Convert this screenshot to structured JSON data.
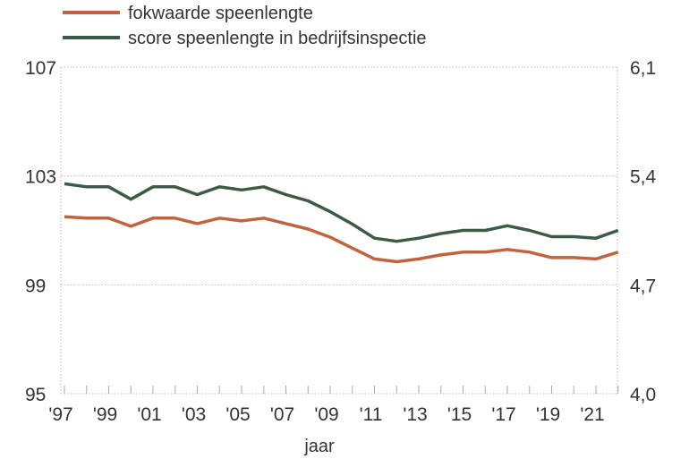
{
  "chart_data": {
    "type": "line",
    "title": "",
    "xlabel": "jaar",
    "ylabel_left": "",
    "ylabel_right": "",
    "x": [
      1997,
      1998,
      1999,
      2000,
      2001,
      2002,
      2003,
      2004,
      2005,
      2006,
      2007,
      2008,
      2009,
      2010,
      2011,
      2012,
      2013,
      2014,
      2015,
      2016,
      2017,
      2018,
      2019,
      2020,
      2021,
      2022
    ],
    "x_tick_labels": [
      "'97",
      "'99",
      "'01",
      "'03",
      "'05",
      "'07",
      "'09",
      "'11",
      "'13",
      "'15",
      "'17",
      "'19",
      "'21"
    ],
    "x_tick_years": [
      1997,
      1999,
      2001,
      2003,
      2005,
      2007,
      2009,
      2011,
      2013,
      2015,
      2017,
      2019,
      2021
    ],
    "ylim_left": [
      95,
      107
    ],
    "y_ticks_left": [
      "107",
      "103",
      "99",
      "95"
    ],
    "y_tick_values_left": [
      107,
      103,
      99,
      95
    ],
    "ylim_right": [
      4.0,
      6.1
    ],
    "y_ticks_right": [
      "6,1",
      "5,4",
      "4,7",
      "4,0"
    ],
    "y_tick_values_right": [
      6.1,
      5.4,
      4.7,
      4.0
    ],
    "grid": true,
    "legend_position": "top-left",
    "series": [
      {
        "name": "fokwaarde speenlengte",
        "axis": "left",
        "color": "#c0643f",
        "values": [
          101.5,
          101.45,
          101.45,
          101.15,
          101.45,
          101.45,
          101.25,
          101.45,
          101.35,
          101.45,
          101.25,
          101.05,
          100.75,
          100.35,
          99.95,
          99.85,
          99.95,
          100.1,
          100.2,
          100.2,
          100.3,
          100.2,
          100.0,
          100.0,
          99.95,
          100.2
        ]
      },
      {
        "name": "score speenlengte in bedrijfsinspectie",
        "axis": "right",
        "color": "#3b5b46",
        "values": [
          5.35,
          5.33,
          5.33,
          5.25,
          5.33,
          5.33,
          5.28,
          5.33,
          5.31,
          5.33,
          5.28,
          5.24,
          5.17,
          5.09,
          5.0,
          4.98,
          5.0,
          5.03,
          5.05,
          5.05,
          5.08,
          5.05,
          5.01,
          5.01,
          5.0,
          5.05
        ]
      }
    ]
  }
}
